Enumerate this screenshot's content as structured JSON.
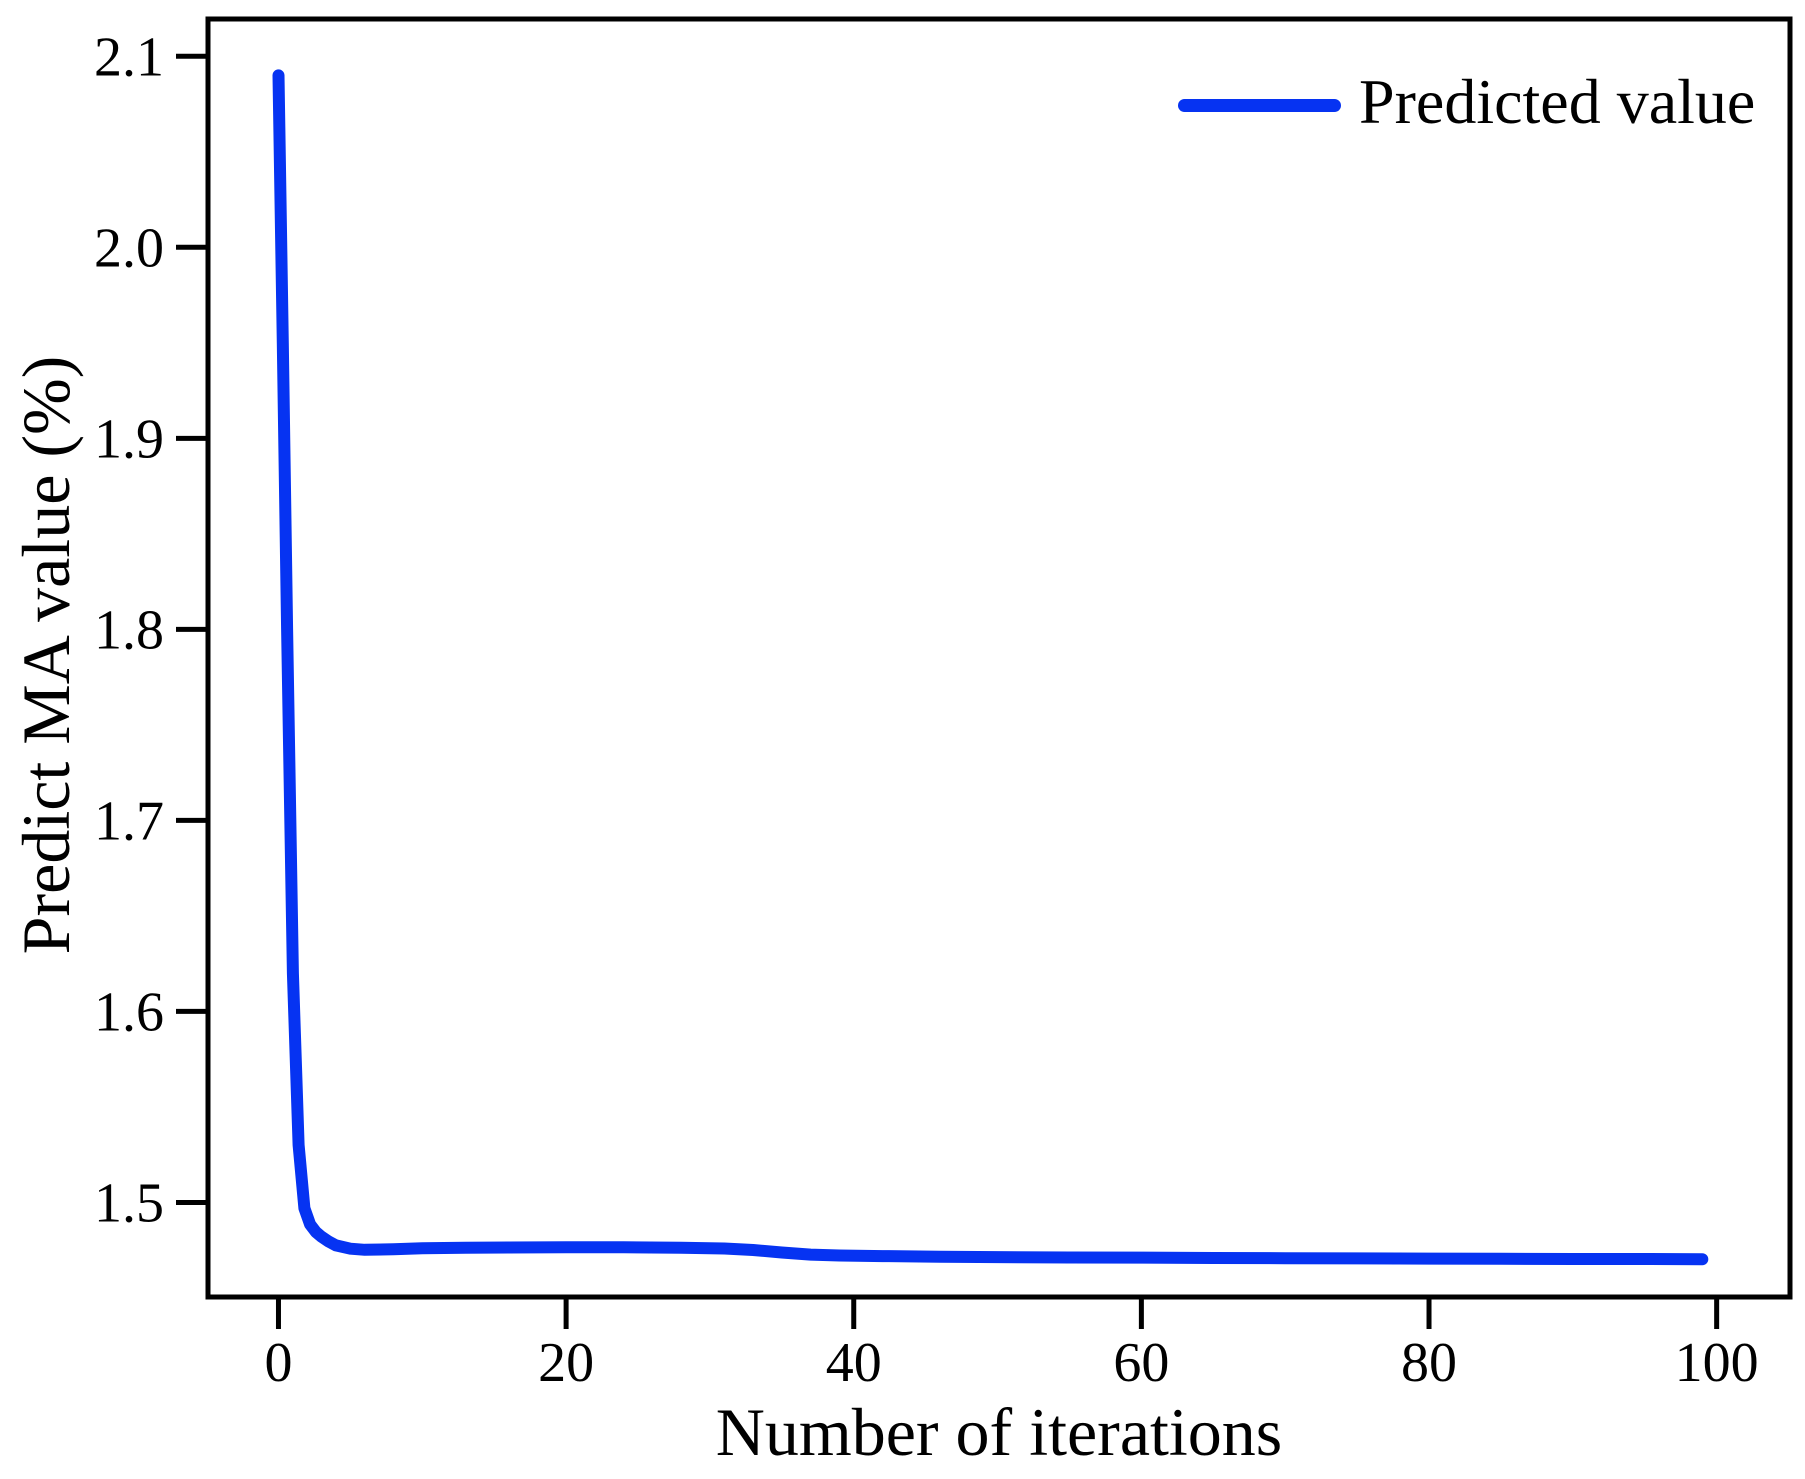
{
  "chart_data": {
    "type": "line",
    "title": "",
    "xlabel": "Number of iterations",
    "ylabel": "Predict MA value (%)",
    "legend": [
      "Predicted value"
    ],
    "legend_position": "upper right",
    "grid": false,
    "background_color": "#ffffff",
    "axis_color": "#000000",
    "line_color": "#0633f2",
    "line_width": 12,
    "xlim": [
      -4.9,
      105.1
    ],
    "ylim": [
      1.4505,
      2.1195
    ],
    "xticks": [
      0,
      20,
      40,
      60,
      80,
      100
    ],
    "xtick_labels": [
      "0",
      "20",
      "40",
      "60",
      "80",
      "100"
    ],
    "yticks": [
      1.5,
      1.6,
      1.7,
      1.8,
      1.9,
      2.0,
      2.1
    ],
    "ytick_labels": [
      "1.5",
      "1.6",
      "1.7",
      "1.8",
      "1.9",
      "2.0",
      "2.1"
    ],
    "series": [
      {
        "name": "Predicted value",
        "points": [
          [
            0,
            2.09
          ],
          [
            0.3,
            1.95
          ],
          [
            0.6,
            1.8
          ],
          [
            1.0,
            1.62
          ],
          [
            1.4,
            1.53
          ],
          [
            1.8,
            1.497
          ],
          [
            2.2,
            1.4885
          ],
          [
            2.6,
            1.4845
          ],
          [
            3.0,
            1.482
          ],
          [
            3.5,
            1.4795
          ],
          [
            4.0,
            1.4775
          ],
          [
            5.0,
            1.4758
          ],
          [
            6.0,
            1.4752
          ],
          [
            8.0,
            1.4755
          ],
          [
            10,
            1.476
          ],
          [
            13,
            1.4763
          ],
          [
            16,
            1.4764
          ],
          [
            20,
            1.4765
          ],
          [
            24,
            1.4765
          ],
          [
            28,
            1.4763
          ],
          [
            31,
            1.4759
          ],
          [
            33,
            1.4751
          ],
          [
            35,
            1.4738
          ],
          [
            37,
            1.4727
          ],
          [
            39,
            1.4722
          ],
          [
            42,
            1.4719
          ],
          [
            46,
            1.4716
          ],
          [
            50,
            1.4714
          ],
          [
            55,
            1.4712
          ],
          [
            60,
            1.4711
          ],
          [
            65,
            1.4709
          ],
          [
            70,
            1.4708
          ],
          [
            75,
            1.4707
          ],
          [
            80,
            1.4706
          ],
          [
            85,
            1.4705
          ],
          [
            90,
            1.4704
          ],
          [
            95,
            1.4704
          ],
          [
            99,
            1.4703
          ]
        ]
      }
    ]
  }
}
